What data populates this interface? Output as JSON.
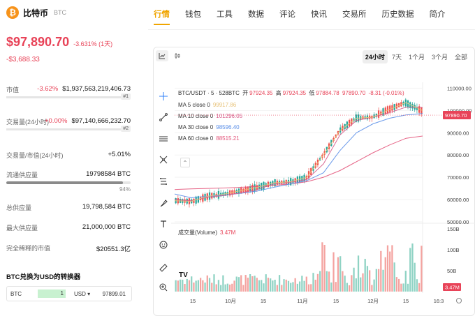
{
  "coin": {
    "name": "比特币",
    "symbol": "BTC",
    "logo_glyph": "₿",
    "price": "$97,890.70",
    "change_pct": "-3.631% (1天)",
    "change_abs": "-$3,688.33"
  },
  "stats": {
    "market_cap": {
      "label": "市值",
      "pct": "-3.62%",
      "value": "$1,937,563,219,406.73",
      "rank": "#1"
    },
    "volume": {
      "label": "交易量(24小时)",
      "pct": "+0.00%",
      "value": "$97,140,666,232.70",
      "rank": "#2"
    },
    "vol_mcap": {
      "label": "交易量/市值(24小时)",
      "value": "+5.01%"
    },
    "circulating": {
      "label": "流通供应量",
      "value": "19798584 BTC",
      "pct_text": "94%",
      "fill": 0.94
    },
    "total_supply": {
      "label": "总供应量",
      "value": "19,798,584 BTC"
    },
    "max_supply": {
      "label": "最大供应量",
      "value": "21,000,000 BTC"
    },
    "fdv": {
      "label": "完全稀释的市值",
      "value": "$20551.3亿"
    }
  },
  "converter": {
    "title": "BTC兑换为USD的转换器",
    "from": "BTC",
    "amount": "1",
    "to": "USD ▾",
    "result": "97899.01"
  },
  "nav": {
    "tabs": [
      "行情",
      "钱包",
      "工具",
      "数据",
      "评论",
      "快讯",
      "交易所",
      "历史数据",
      "简介"
    ],
    "active": 0
  },
  "chart_controls": {
    "ranges": [
      "24小时",
      "7天",
      "1个月",
      "3个月",
      "全部"
    ],
    "active_range": 0,
    "view_icons": [
      "line-chart-icon",
      "candlestick-icon"
    ]
  },
  "tools": [
    "crosshair-icon",
    "trendline-icon",
    "horizontal-lines-icon",
    "pattern-icon",
    "measure-icon",
    "brush-icon",
    "text-icon",
    "emoji-icon",
    "ruler-icon",
    "zoom-in-icon"
  ],
  "legend": {
    "pair": "BTC/USDT · 5 · 528BTC",
    "open_label": "开",
    "open": "97924.35",
    "high_label": "高",
    "high": "97924.35",
    "low_label": "低",
    "low": "97884.78",
    "close": "97890.70",
    "change": "-8.31 (-0.01%)",
    "ma": [
      {
        "label": "MA 5 close 0",
        "value": "99917.86",
        "color": "#e8c37a"
      },
      {
        "label": "MA 10 close 0",
        "value": "101296.05",
        "color": "#d65c8a"
      },
      {
        "label": "MA 30 close 0",
        "value": "98596.40",
        "color": "#5b8fe8"
      },
      {
        "label": "MA 60 close 0",
        "value": "88515.21",
        "color": "#e3547a"
      }
    ]
  },
  "volume_panel": {
    "label": "成交量(Volume)",
    "value": "3.47M",
    "tv_logo": "TV"
  },
  "colors": {
    "up": "#26a69a",
    "down": "#ef5350",
    "accent": "#f0a500",
    "price_red": "#e84358"
  },
  "chart_data": {
    "type": "line",
    "title": "BTC/USDT · 5 · 528BTC",
    "x_ticks": [
      "15",
      "10月",
      "15",
      "11月",
      "15",
      "12月",
      "15",
      "16:3"
    ],
    "y_ticks": [
      "110000.00",
      "100000.00",
      "90000.00",
      "80000.00",
      "70000.00",
      "60000.00",
      "50000.00"
    ],
    "ylim": [
      50000,
      112000
    ],
    "last_price_label": "97890.70",
    "volume_ticks": [
      "150B",
      "100B",
      "50B"
    ],
    "volume_ylim": [
      0,
      160
    ],
    "volume_last_label": "3.47M",
    "series": [
      {
        "name": "MA 60 close 0",
        "values": [
          64500,
          64800,
          65000,
          65200,
          65500,
          65900,
          66400,
          67000,
          68000,
          70000,
          73000,
          77000,
          81000,
          84500,
          87500,
          88515
        ]
      },
      {
        "name": "MA 30 close 0",
        "values": [
          62500,
          60800,
          61500,
          62000,
          62800,
          63800,
          65500,
          67000,
          68500,
          72000,
          82000,
          90000,
          94000,
          96500,
          98000,
          98596
        ]
      },
      {
        "name": "MA 10 close 0",
        "values": [
          60000,
          59500,
          61000,
          61800,
          63000,
          64500,
          67000,
          67800,
          69000,
          76000,
          89000,
          95500,
          97000,
          99000,
          101500,
          101296
        ]
      },
      {
        "name": "MA 5 close 0",
        "values": [
          59500,
          59200,
          61500,
          62500,
          64000,
          65500,
          67500,
          68000,
          70000,
          80000,
          91000,
          96500,
          97000,
          100500,
          103500,
          99918
        ]
      }
    ]
  }
}
